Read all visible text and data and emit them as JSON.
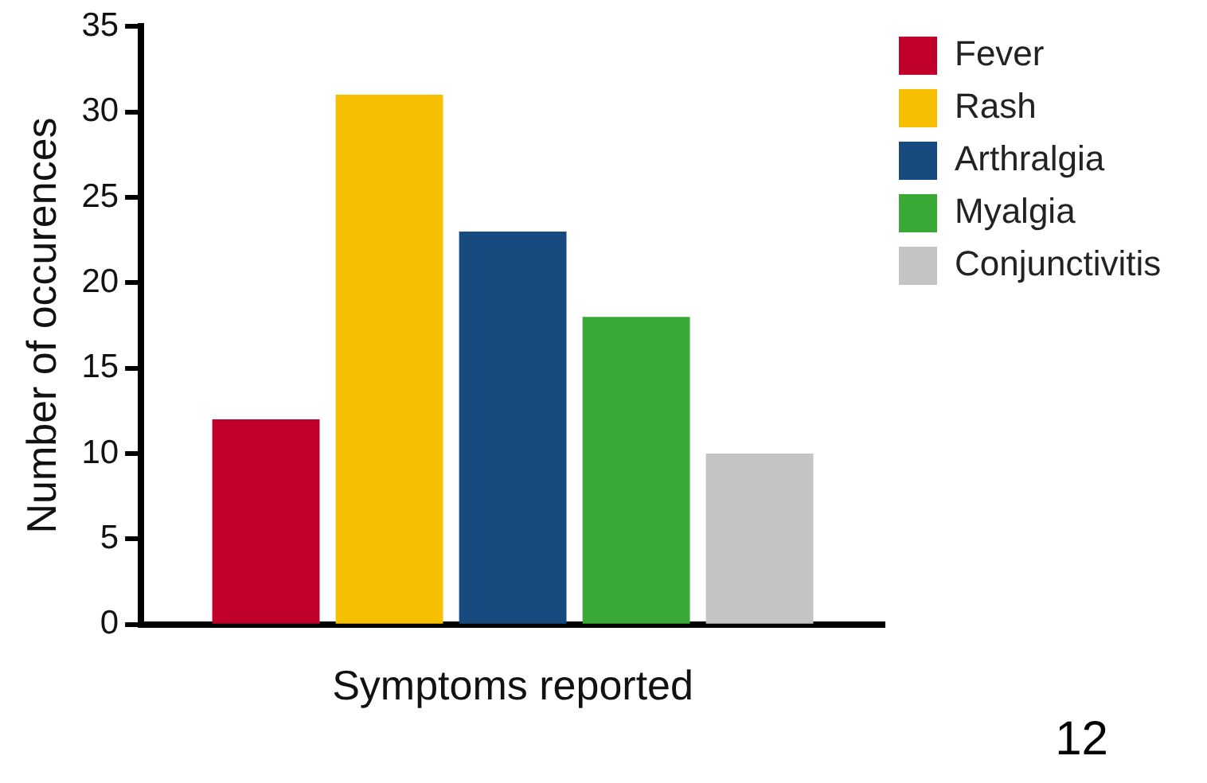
{
  "chart_data": {
    "type": "bar",
    "xlabel": "Symptoms reported",
    "ylabel": "Number of occurences",
    "categories": [
      null
    ],
    "series": [
      {
        "name": "Fever",
        "color": "#c0002a",
        "values": [
          12
        ]
      },
      {
        "name": "Rash",
        "color": "#f6c000",
        "values": [
          31
        ]
      },
      {
        "name": "Arthralgia",
        "color": "#174b7f",
        "values": [
          23
        ]
      },
      {
        "name": "Myalgia",
        "color": "#3aa935",
        "values": [
          18
        ]
      },
      {
        "name": "Conjunctivitis",
        "color": "#c4c4c4",
        "values": [
          10
        ]
      }
    ],
    "ylim": [
      0,
      35
    ],
    "yticks": [
      0,
      5,
      10,
      15,
      20,
      25,
      30,
      35
    ],
    "grid": false,
    "legend": "top right",
    "annotations": [
      "12"
    ]
  }
}
